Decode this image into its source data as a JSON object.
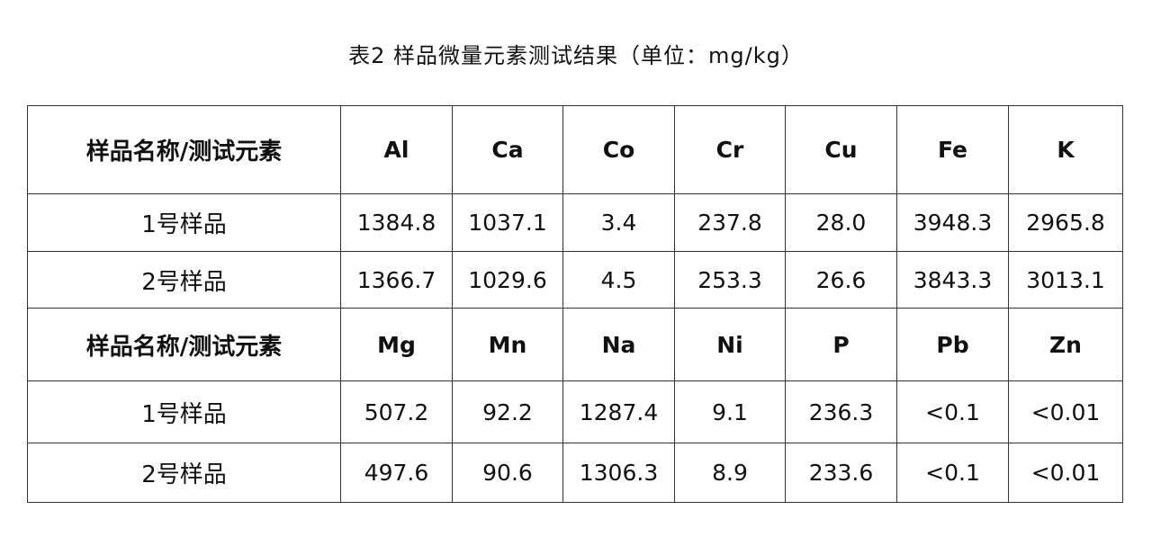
{
  "title": "表2 样品微量元素测试结果（单位：mg/kg）",
  "sections": [
    {
      "header_label": "样品名称/测试元素",
      "elements": [
        "Al",
        "Ca",
        "Co",
        "Cr",
        "Cu",
        "Fe",
        "K"
      ],
      "rows": [
        {
          "sample": "1号样品",
          "values": [
            "1384.8",
            "1037.1",
            "3.4",
            "237.8",
            "28.0",
            "3948.3",
            "2965.8"
          ]
        },
        {
          "sample": "2号样品",
          "values": [
            "1366.7",
            "1029.6",
            "4.5",
            "253.3",
            "26.6",
            "3843.3",
            "3013.1"
          ]
        }
      ]
    },
    {
      "header_label": "样品名称/测试元素",
      "elements": [
        "Mg",
        "Mn",
        "Na",
        "Ni",
        "P",
        "Pb",
        "Zn"
      ],
      "rows": [
        {
          "sample": "1号样品",
          "values": [
            "507.2",
            "92.2",
            "1287.4",
            "9.1",
            "236.3",
            "<0.1",
            "<0.01"
          ]
        },
        {
          "sample": "2号样品",
          "values": [
            "497.6",
            "90.6",
            "1306.3",
            "8.9",
            "233.6",
            "<0.1",
            "<0.01"
          ]
        }
      ]
    }
  ]
}
